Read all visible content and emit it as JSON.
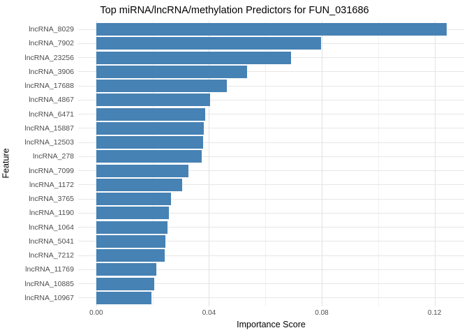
{
  "chart_data": {
    "type": "bar",
    "orientation": "horizontal",
    "title": "Top miRNA/lncRNA/methylation Predictors for FUN_031686",
    "xlabel": "Importance Score",
    "ylabel": "Feature",
    "categories": [
      "lncRNA_8029",
      "lncRNA_7902",
      "lncRNA_23256",
      "lncRNA_3906",
      "lncRNA_17688",
      "lncRNA_4867",
      "lncRNA_6471",
      "lncRNA_15887",
      "lncRNA_12503",
      "lncRNA_278",
      "lncRNA_7099",
      "lncRNA_1172",
      "lncRNA_3765",
      "lncRNA_1190",
      "lncRNA_1064",
      "lncRNA_5041",
      "lncRNA_7212",
      "lncRNA_11769",
      "lncRNA_10885",
      "lncRNA_10967"
    ],
    "values": [
      0.1243,
      0.0798,
      0.0691,
      0.0535,
      0.0463,
      0.0404,
      0.0386,
      0.0382,
      0.0379,
      0.0374,
      0.0327,
      0.0305,
      0.0265,
      0.0258,
      0.0253,
      0.0245,
      0.0243,
      0.0213,
      0.0207,
      0.0196
    ],
    "x_ticks": [
      {
        "value": 0.0,
        "label": "0.00"
      },
      {
        "value": 0.04,
        "label": "0.04"
      },
      {
        "value": 0.08,
        "label": "0.08"
      },
      {
        "value": 0.12,
        "label": "0.12"
      }
    ],
    "x_minor_ticks": [
      0.02,
      0.06,
      0.1
    ],
    "xlim": [
      -0.0064,
      0.1305
    ],
    "bar_start": 0.0,
    "bar_color": "#4682B4",
    "grid_major_color": "#e2e2e2",
    "grid_minor_color": "#f1f1f1",
    "background": "#ffffff",
    "legend": "none",
    "grid": true
  }
}
